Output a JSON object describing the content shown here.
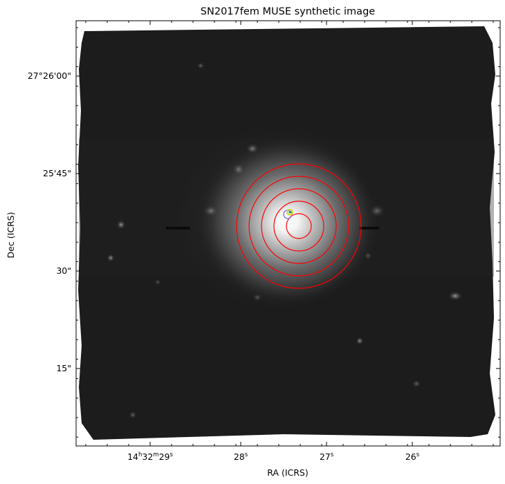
{
  "chart_data": {
    "type": "image",
    "title": "SN2017fem MUSE synthetic image",
    "xlabel": "RA (ICRS)",
    "ylabel": "Dec (ICRS)",
    "colormap": "grayscale",
    "grid": false,
    "x_ticks": [
      {
        "h": "14",
        "hs": "h",
        "m": "32",
        "ms": "m",
        "s": "29",
        "ss": "s",
        "value": "14h32m29s"
      },
      {
        "h": "",
        "hs": "",
        "m": "",
        "ms": "",
        "s": "28",
        "ss": "s",
        "value": "14h32m28s"
      },
      {
        "h": "",
        "hs": "",
        "m": "",
        "ms": "",
        "s": "27",
        "ss": "s",
        "value": "14h32m27s"
      },
      {
        "h": "",
        "hs": "",
        "m": "",
        "ms": "",
        "s": "26",
        "ss": "s",
        "value": "14h32m26s"
      }
    ],
    "y_ticks": [
      {
        "label": "27°26'00\"",
        "value": "+27d26m00s"
      },
      {
        "label": "25'45\"",
        "value": "+27d25m45s"
      },
      {
        "label": "30\"",
        "value": "+27d25m30s"
      },
      {
        "label": "15\"",
        "value": "+27d25m15s"
      }
    ],
    "annuli": {
      "color": "#ff0000",
      "count": 5,
      "center": "galaxy nucleus"
    },
    "sn_markers": [
      {
        "color": "#c8d400"
      },
      {
        "color": "#7a6cff"
      }
    ]
  }
}
